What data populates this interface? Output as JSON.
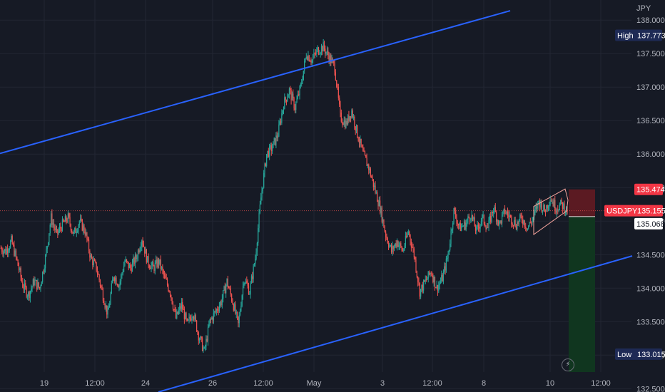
{
  "colors": {
    "background": "#161a25",
    "grid": "#222633",
    "axis_text": "#b2b5be",
    "up": "#26a69a",
    "down": "#ef5350",
    "channel_line": "#2962ff",
    "wedge": "#f7a59e",
    "risk_zone": "#5b1a22",
    "reward_zone": "#10361f",
    "price_line": "#ef5350",
    "entry_line": "#e8e8e8",
    "badge_dark": "#1e2a55",
    "badge_red": "#f23645"
  },
  "chart_data": {
    "type": "candlestick",
    "symbol": "USDJPY",
    "currency": "JPY",
    "ylim": [
      132.45,
      138.3
    ],
    "y_ticks": [
      132.5,
      133.0,
      133.5,
      134.0,
      134.5,
      135.0,
      135.5,
      136.0,
      136.5,
      137.0,
      137.5,
      138.0
    ],
    "y_tick_labels": [
      "132.500",
      "133.000",
      "133.500",
      "134.000",
      "134.500",
      "135.000",
      "135.500",
      "136.000",
      "136.500",
      "137.000",
      "137.500",
      "138.000"
    ],
    "x_tick_labels": [
      "19",
      "12:00",
      "24",
      "26",
      "12:00",
      "May",
      "3",
      "12:00",
      "8",
      "10",
      "12:00"
    ],
    "grid": true,
    "last_price": {
      "label": "USDJPY",
      "value": "135.155"
    },
    "high_marker": {
      "label": "High",
      "value": "137.773"
    },
    "low_marker": {
      "label": "Low",
      "value": "133.015"
    },
    "stop_level": {
      "value": "135.474"
    },
    "entry_level": {
      "value": "135.068"
    },
    "path": [
      [
        134.6,
        5
      ],
      [
        134.55,
        3
      ],
      [
        134.7,
        4
      ],
      [
        134.4,
        6
      ],
      [
        134.05,
        8
      ],
      [
        133.9,
        6
      ],
      [
        134.1,
        5
      ],
      [
        134.0,
        5
      ],
      [
        134.45,
        6
      ],
      [
        135.05,
        7
      ],
      [
        134.8,
        6
      ],
      [
        134.95,
        4
      ],
      [
        135.05,
        5
      ],
      [
        134.8,
        4
      ],
      [
        135.0,
        4
      ],
      [
        134.85,
        6
      ],
      [
        134.45,
        5
      ],
      [
        134.3,
        4
      ],
      [
        133.95,
        5
      ],
      [
        133.6,
        5
      ],
      [
        134.2,
        5
      ],
      [
        134.05,
        4
      ],
      [
        134.4,
        6
      ],
      [
        134.3,
        5
      ],
      [
        134.45,
        5
      ],
      [
        134.75,
        5
      ],
      [
        134.4,
        5
      ],
      [
        134.3,
        4
      ],
      [
        134.4,
        5
      ],
      [
        134.15,
        4
      ],
      [
        133.95,
        5
      ],
      [
        133.55,
        6
      ],
      [
        133.75,
        5
      ],
      [
        133.45,
        6
      ],
      [
        133.65,
        5
      ],
      [
        133.3,
        4
      ],
      [
        133.05,
        6
      ],
      [
        133.5,
        6
      ],
      [
        133.65,
        6
      ],
      [
        133.8,
        5
      ],
      [
        134.1,
        6
      ],
      [
        133.8,
        4
      ],
      [
        133.45,
        6
      ],
      [
        134.15,
        6
      ],
      [
        133.95,
        4
      ],
      [
        134.45,
        3
      ],
      [
        135.35,
        6
      ],
      [
        136.0,
        6
      ],
      [
        136.1,
        4
      ],
      [
        136.3,
        4
      ],
      [
        136.75,
        6
      ],
      [
        136.95,
        5
      ],
      [
        136.7,
        6
      ],
      [
        137.0,
        5
      ],
      [
        137.5,
        5
      ],
      [
        137.4,
        4
      ],
      [
        137.55,
        5
      ],
      [
        137.6,
        6
      ],
      [
        137.45,
        5
      ],
      [
        137.3,
        4
      ],
      [
        136.55,
        6
      ],
      [
        136.45,
        4
      ],
      [
        136.65,
        5
      ],
      [
        136.3,
        4
      ],
      [
        136.0,
        4
      ],
      [
        135.8,
        4
      ],
      [
        135.5,
        6
      ],
      [
        135.2,
        5
      ],
      [
        134.8,
        6
      ],
      [
        134.55,
        5
      ],
      [
        134.7,
        4
      ],
      [
        134.55,
        5
      ],
      [
        134.85,
        5
      ],
      [
        134.5,
        4
      ],
      [
        133.95,
        6
      ],
      [
        134.1,
        5
      ],
      [
        134.25,
        5
      ],
      [
        134.0,
        5
      ],
      [
        134.15,
        4
      ],
      [
        134.5,
        5
      ],
      [
        135.15,
        6
      ],
      [
        134.9,
        6
      ],
      [
        134.95,
        5
      ],
      [
        135.1,
        5
      ],
      [
        134.85,
        5
      ],
      [
        135.05,
        5
      ],
      [
        134.9,
        4
      ],
      [
        135.2,
        5
      ],
      [
        134.95,
        5
      ],
      [
        135.15,
        4
      ],
      [
        135.05,
        5
      ],
      [
        134.95,
        4
      ],
      [
        135.05,
        3
      ],
      [
        134.9,
        5
      ],
      [
        135.05,
        4
      ],
      [
        135.3,
        4
      ],
      [
        135.15,
        4
      ],
      [
        135.35,
        3
      ],
      [
        135.2,
        4
      ],
      [
        135.25,
        3
      ],
      [
        135.15,
        3
      ]
    ],
    "trendlines": [
      {
        "x0": 0,
        "y0": 136.01,
        "x1": 715,
        "y1": 138.14
      },
      {
        "x0": 222,
        "y0": 132.45,
        "x1": 886,
        "y1": 134.48
      }
    ],
    "wedge": {
      "x_start": 748,
      "x_end": 796,
      "upper": [
        135.22,
        135.48
      ],
      "lower": [
        134.8,
        135.15
      ]
    }
  }
}
